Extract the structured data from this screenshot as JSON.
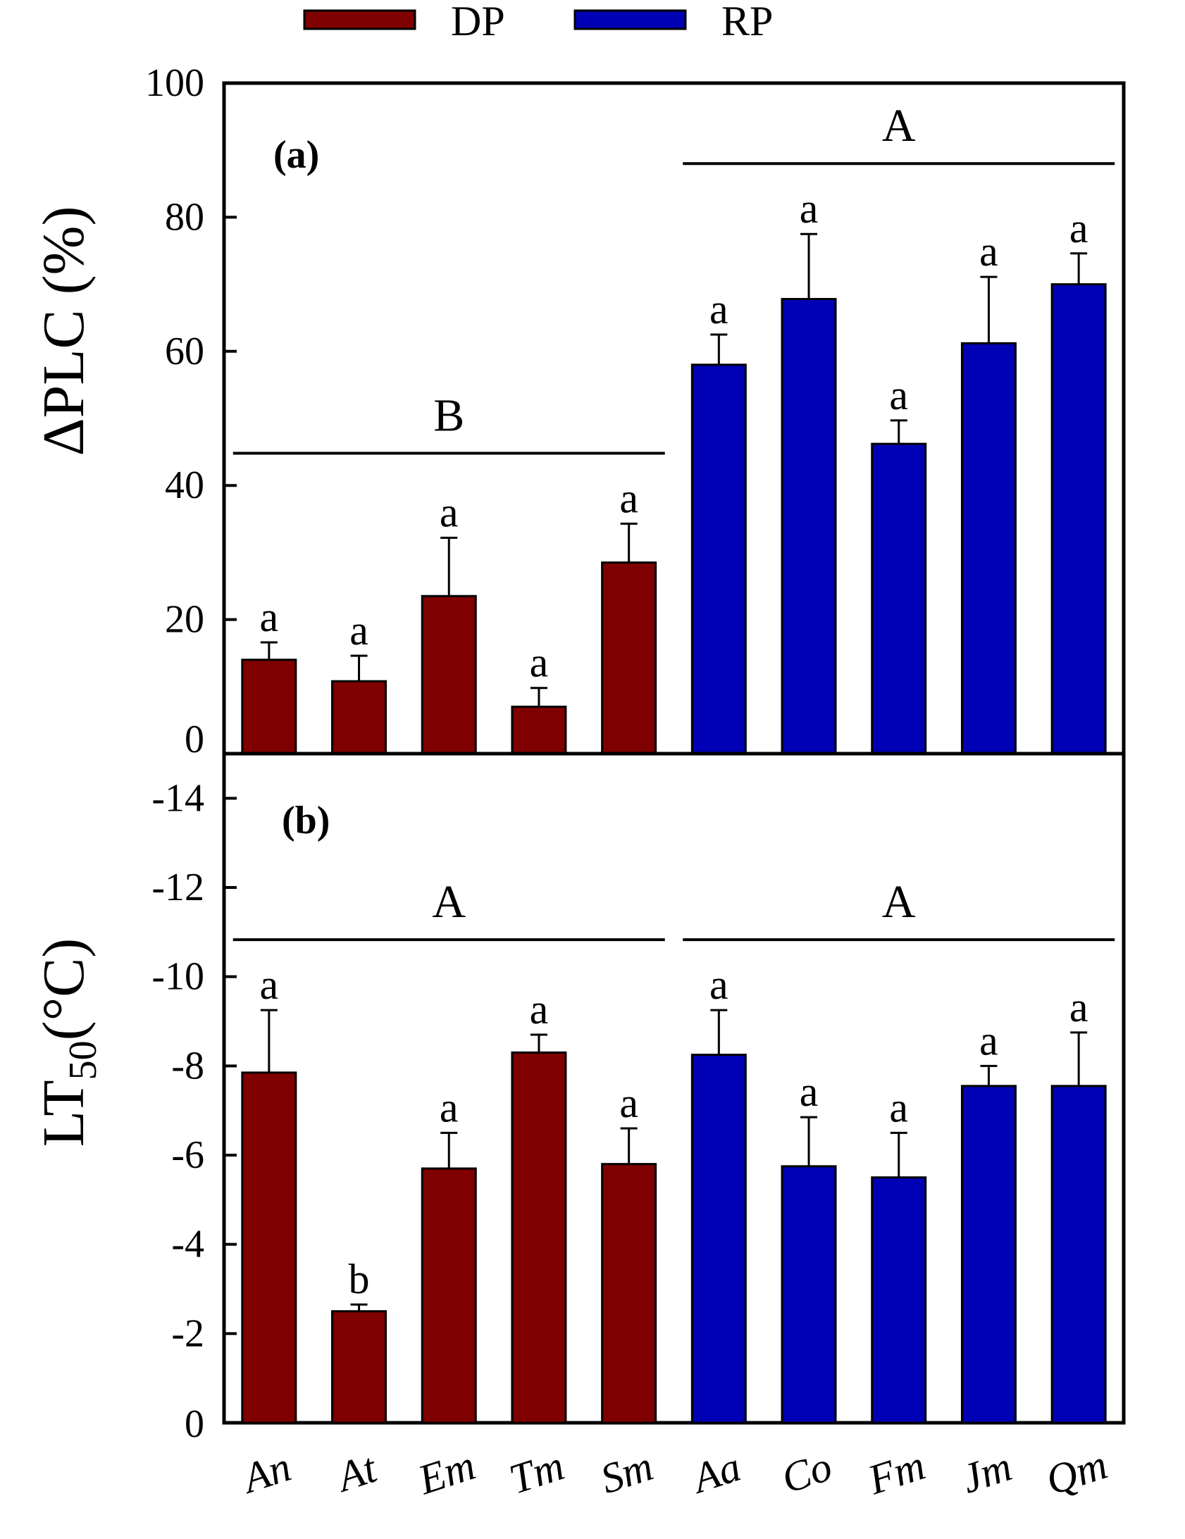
{
  "legend": [
    {
      "label": "DP",
      "color": "#7f0000"
    },
    {
      "label": "RP",
      "color": "#0000b4"
    }
  ],
  "chart_data": [
    {
      "type": "bar",
      "panel_label": "(a)",
      "ylabel": "ΔPLC (%)",
      "ylim": [
        0,
        100
      ],
      "yticks": [
        "0",
        "20",
        "40",
        "60",
        "80",
        "100"
      ],
      "ytick_values": [
        0,
        20,
        40,
        60,
        80,
        100
      ],
      "categories": [
        "An",
        "At",
        "Em",
        "Tm",
        "Sm",
        "Aa",
        "Co",
        "Fm",
        "Jm",
        "Qm"
      ],
      "groups": [
        "DP",
        "DP",
        "DP",
        "DP",
        "DP",
        "RP",
        "RP",
        "RP",
        "RP",
        "RP"
      ],
      "values": [
        14,
        10.8,
        23.5,
        7,
        28.5,
        58,
        67.8,
        46.2,
        61.2,
        70
      ],
      "errors": [
        2.6,
        3.8,
        8.7,
        2.8,
        5.8,
        4.5,
        9.7,
        3.5,
        9.9,
        4.6
      ],
      "letters": [
        "a",
        "a",
        "a",
        "a",
        "a",
        "a",
        "a",
        "a",
        "a",
        "a"
      ],
      "group_labels": [
        {
          "text": "B",
          "from": 0,
          "to": 4
        },
        {
          "text": "A",
          "from": 5,
          "to": 9
        }
      ]
    },
    {
      "type": "bar",
      "panel_label": "(b)",
      "ylabel": "LT",
      "ylabel_sub": "50",
      "ylabel_unit": "(°C)",
      "ylim": [
        0,
        -15
      ],
      "yticks": [
        "0",
        "-2",
        "-4",
        "-6",
        "-8",
        "-10",
        "-12",
        "-14"
      ],
      "ytick_values": [
        0,
        -2,
        -4,
        -6,
        -8,
        -10,
        -12,
        -14
      ],
      "categories": [
        "An",
        "At",
        "Em",
        "Tm",
        "Sm",
        "Aa",
        "Co",
        "Fm",
        "Jm",
        "Qm"
      ],
      "groups": [
        "DP",
        "DP",
        "DP",
        "DP",
        "DP",
        "RP",
        "RP",
        "RP",
        "RP",
        "RP"
      ],
      "values": [
        -7.85,
        -2.5,
        -5.7,
        -8.3,
        -5.8,
        -8.25,
        -5.75,
        -5.5,
        -7.55,
        -7.55
      ],
      "errors": [
        1.4,
        0.15,
        0.8,
        0.4,
        0.8,
        1.0,
        1.1,
        1.0,
        0.45,
        1.2
      ],
      "letters": [
        "a",
        "b",
        "a",
        "a",
        "a",
        "a",
        "a",
        "a",
        "a",
        "a"
      ],
      "group_labels": [
        {
          "text": "A",
          "from": 0,
          "to": 4
        },
        {
          "text": "A",
          "from": 5,
          "to": 9
        }
      ]
    }
  ]
}
